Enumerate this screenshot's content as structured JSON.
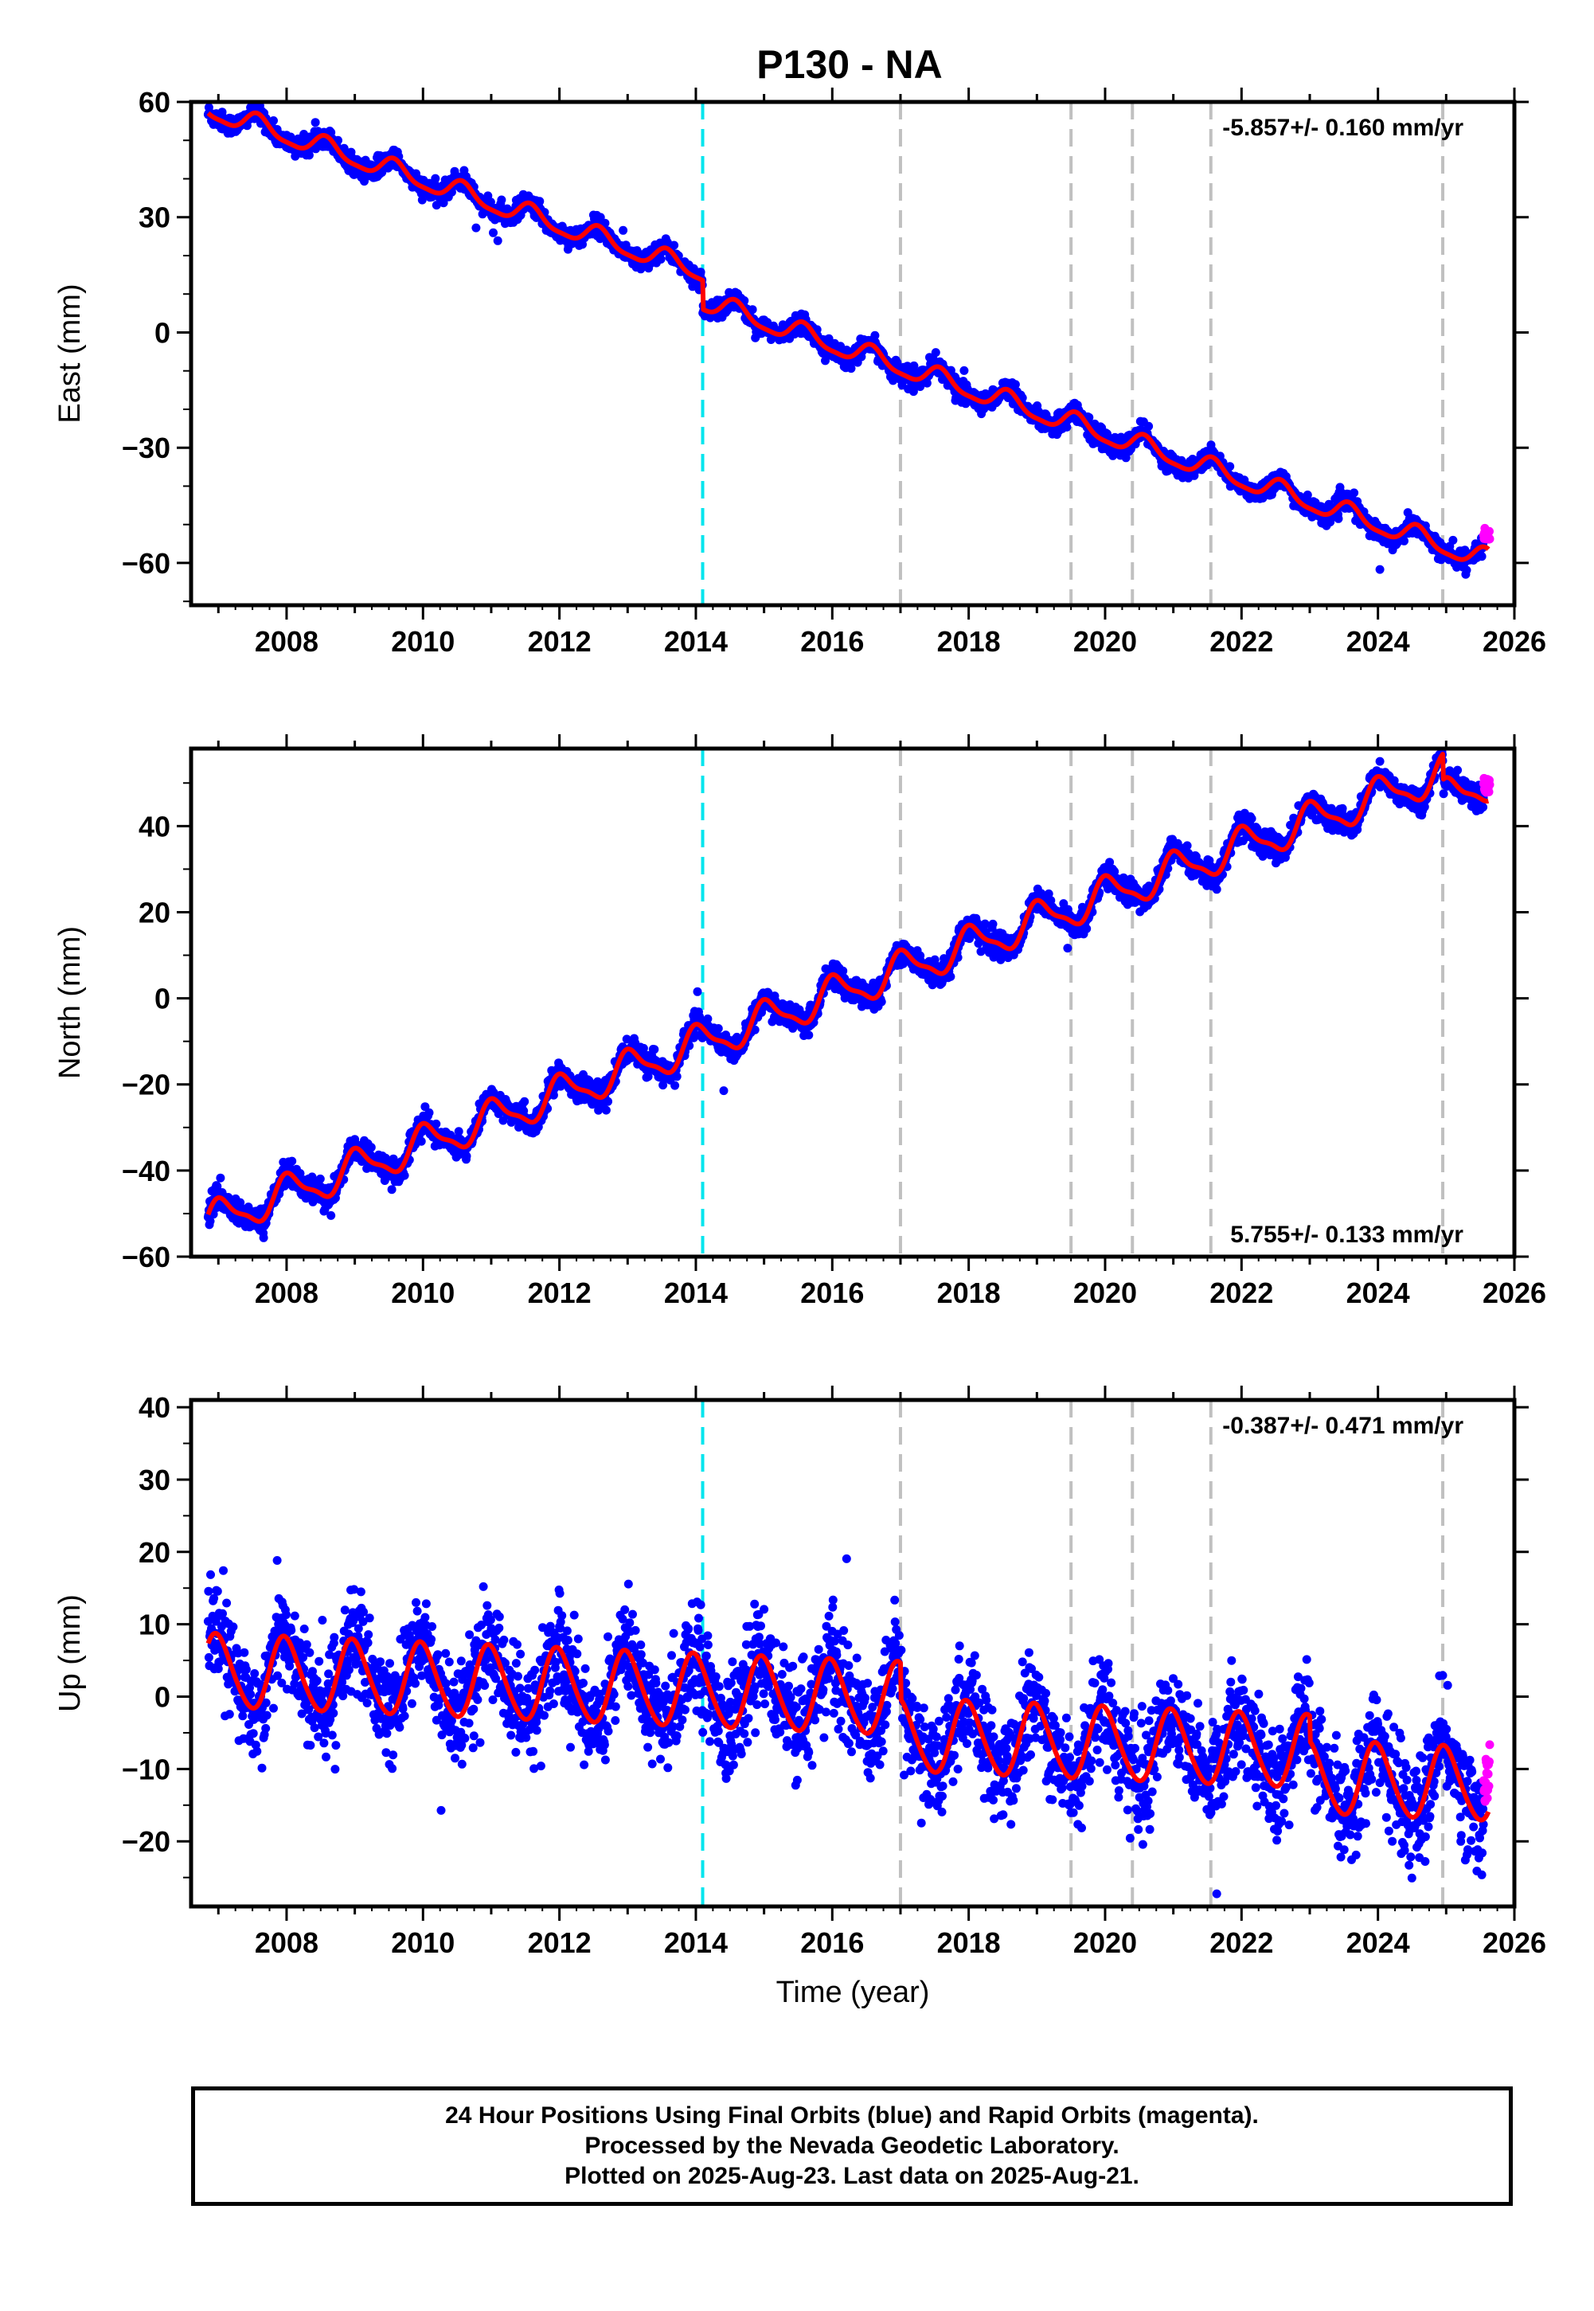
{
  "title": "P130 - NA",
  "chart_data": {
    "type": "scatter",
    "x_ticks": [
      "2008",
      "2010",
      "2012",
      "2014",
      "2016",
      "2018",
      "2020",
      "2022",
      "2024",
      "2026"
    ],
    "xlim": [
      2006.6,
      2026.0
    ],
    "xlabel": "Time (year)",
    "event_lines": {
      "cyan": [
        2014.1
      ],
      "gray": [
        2017.0,
        2019.5,
        2020.4,
        2021.55,
        2024.95
      ]
    },
    "colors": {
      "final_orbits": "#0000ff",
      "rapid_orbits": "#ff00ff",
      "model": "#ff0000",
      "cyan_line": "#00e5ee",
      "gray_line": "#c0c0c0"
    },
    "panels": [
      {
        "component": "east",
        "ylabel": "East (mm)",
        "ylim": [
          -71,
          60
        ],
        "y_ticks": [
          "60",
          "30",
          "0",
          "−30",
          "−60"
        ],
        "y_tick_values": [
          60,
          30,
          0,
          -30,
          -60
        ],
        "rate": "-5.857+/- 0.160 mm/yr",
        "rate_position": "top-right",
        "model": {
          "start_year": 2006.85,
          "end_year": 2025.62,
          "start_value": 58,
          "rate": -5.857,
          "offsets": [
            [
              2014.1,
              -7.5
            ]
          ],
          "annual_amplitude": 2.6,
          "semiannual_amplitude": 0.7,
          "phase": 4.2
        },
        "scatter_sd": 1.2,
        "data_start": 2006.85,
        "data_end": 2025.55,
        "rapid_start": 2025.55,
        "rapid_end": 2025.64
      },
      {
        "component": "north",
        "ylabel": "North (mm)",
        "ylim": [
          -60,
          58
        ],
        "y_ticks": [
          "40",
          "20",
          "0",
          "−20",
          "−40",
          "−60"
        ],
        "y_tick_values": [
          40,
          20,
          0,
          -20,
          -40,
          -60
        ],
        "rate": "5.755+/- 0.133 mm/yr",
        "rate_position": "bottom-right",
        "model": {
          "start_year": 2006.85,
          "end_year": 2025.62,
          "start_value": -52,
          "rate": 5.755,
          "offsets": [
            [
              2024.95,
              -6
            ]
          ],
          "annual_amplitude": 4.0,
          "semiannual_amplitude": 1.2,
          "phase": 1.3
        },
        "scatter_sd": 1.4,
        "data_start": 2006.85,
        "data_end": 2025.55,
        "rapid_start": 2025.55,
        "rapid_end": 2025.64
      },
      {
        "component": "up",
        "ylabel": "Up (mm)",
        "ylim": [
          -29,
          41
        ],
        "y_ticks": [
          "40",
          "30",
          "20",
          "10",
          "0",
          "−10",
          "−20"
        ],
        "y_tick_values": [
          40,
          30,
          20,
          10,
          0,
          -10,
          -20
        ],
        "rate": "-0.387+/- 0.471 mm/yr",
        "rate_position": "top-right",
        "model": {
          "start_year": 2006.85,
          "end_year": 2025.62,
          "start_value": 3.5,
          "rate": -0.387,
          "offsets": [
            [
              2017.0,
              -5
            ],
            [
              2023.0,
              -3.5
            ]
          ],
          "annual_amplitude": 5.0,
          "semiannual_amplitude": 0.5,
          "phase": 1.7
        },
        "scatter_sd": 3.5,
        "data_start": 2006.85,
        "data_end": 2025.55,
        "rapid_start": 2025.55,
        "rapid_end": 2025.64
      }
    ]
  },
  "footer": {
    "line1": "24 Hour Positions Using Final Orbits (blue) and Rapid Orbits (magenta).",
    "line2": "Processed by the Nevada Geodetic Laboratory.",
    "line3": "Plotted on 2025-Aug-23. Last data on 2025-Aug-21."
  }
}
